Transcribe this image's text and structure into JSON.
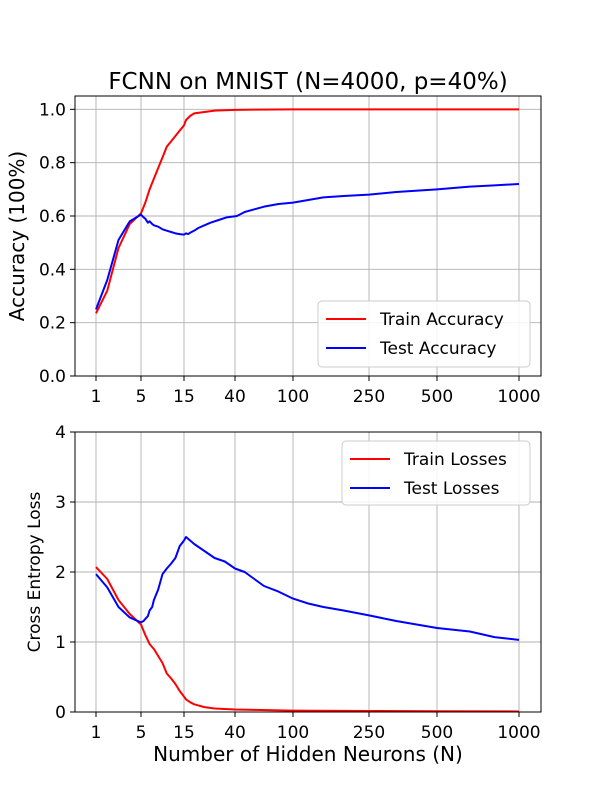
{
  "figure": {
    "title": "FCNN on MNIST (N=4000, p=40%)"
  },
  "colors": {
    "train": "#ff0000",
    "test": "#0000ff",
    "grid": "#b0b0b0",
    "axis": "#000000"
  },
  "chart_data": [
    {
      "type": "line",
      "title": "FCNN on MNIST (N=4000, p=40%)",
      "xlabel": "",
      "ylabel": "Accuracy (100%)",
      "x_ticks": [
        "1",
        "5",
        "15",
        "40",
        "100",
        "250",
        "500",
        "1000"
      ],
      "xlim": [
        1,
        1000
      ],
      "ylim": [
        0,
        1.05
      ],
      "y_ticks": [
        "0.0",
        "0.2",
        "0.4",
        "0.6",
        "0.8",
        "1.0"
      ],
      "grid": true,
      "legend_position": "lower-right",
      "series": [
        {
          "name": "Train Accuracy",
          "color": "#ff0000",
          "points": [
            [
              1,
              0.235
            ],
            [
              2,
              0.32
            ],
            [
              3,
              0.48
            ],
            [
              4,
              0.57
            ],
            [
              5,
              0.61
            ],
            [
              6,
              0.65
            ],
            [
              7,
              0.7
            ],
            [
              8,
              0.74
            ],
            [
              9,
              0.78
            ],
            [
              10,
              0.82
            ],
            [
              11,
              0.86
            ],
            [
              12,
              0.88
            ],
            [
              13,
              0.9
            ],
            [
              14,
              0.92
            ],
            [
              15,
              0.94
            ],
            [
              16,
              0.96
            ],
            [
              18,
              0.975
            ],
            [
              20,
              0.985
            ],
            [
              25,
              0.99
            ],
            [
              30,
              0.995
            ],
            [
              40,
              0.998
            ],
            [
              60,
              0.999
            ],
            [
              100,
              1.0
            ],
            [
              250,
              1.0
            ],
            [
              500,
              1.0
            ],
            [
              1000,
              1.0
            ]
          ]
        },
        {
          "name": "Test Accuracy",
          "color": "#0000ff",
          "points": [
            [
              1,
              0.25
            ],
            [
              2,
              0.36
            ],
            [
              3,
              0.51
            ],
            [
              4,
              0.58
            ],
            [
              5,
              0.605
            ],
            [
              5.6,
              0.595
            ],
            [
              6,
              0.59
            ],
            [
              6.6,
              0.575
            ],
            [
              7,
              0.58
            ],
            [
              7.6,
              0.57
            ],
            [
              8,
              0.565
            ],
            [
              9,
              0.56
            ],
            [
              10,
              0.55
            ],
            [
              11,
              0.545
            ],
            [
              12,
              0.54
            ],
            [
              13,
              0.535
            ],
            [
              14,
              0.532
            ],
            [
              15,
              0.53
            ],
            [
              16,
              0.535
            ],
            [
              17,
              0.532
            ],
            [
              18,
              0.537
            ],
            [
              20,
              0.545
            ],
            [
              22,
              0.555
            ],
            [
              25,
              0.565
            ],
            [
              28,
              0.575
            ],
            [
              32,
              0.585
            ],
            [
              36,
              0.595
            ],
            [
              42,
              0.6
            ],
            [
              50,
              0.615
            ],
            [
              60,
              0.625
            ],
            [
              70,
              0.635
            ],
            [
              85,
              0.645
            ],
            [
              100,
              0.65
            ],
            [
              130,
              0.66
            ],
            [
              160,
              0.67
            ],
            [
              200,
              0.675
            ],
            [
              250,
              0.68
            ],
            [
              350,
              0.69
            ],
            [
              500,
              0.7
            ],
            [
              700,
              0.71
            ],
            [
              850,
              0.715
            ],
            [
              1000,
              0.72
            ]
          ]
        }
      ]
    },
    {
      "type": "line",
      "title": "",
      "xlabel": "Number of Hidden Neurons (N)",
      "ylabel": "Cross Entropy Loss",
      "x_ticks": [
        "1",
        "5",
        "15",
        "40",
        "100",
        "250",
        "500",
        "1000"
      ],
      "xlim": [
        1,
        1000
      ],
      "ylim": [
        0,
        4
      ],
      "y_ticks": [
        "0",
        "1",
        "2",
        "3",
        "4"
      ],
      "grid": true,
      "legend_position": "upper-right",
      "series": [
        {
          "name": "Train Losses",
          "color": "#ff0000",
          "points": [
            [
              1,
              2.07
            ],
            [
              2,
              1.9
            ],
            [
              3,
              1.6
            ],
            [
              4,
              1.4
            ],
            [
              5,
              1.25
            ],
            [
              6,
              1.1
            ],
            [
              7,
              0.97
            ],
            [
              8,
              0.9
            ],
            [
              9,
              0.8
            ],
            [
              10,
              0.7
            ],
            [
              11,
              0.55
            ],
            [
              12,
              0.48
            ],
            [
              13,
              0.4
            ],
            [
              14,
              0.3
            ],
            [
              15,
              0.22
            ],
            [
              16,
              0.18
            ],
            [
              18,
              0.14
            ],
            [
              20,
              0.11
            ],
            [
              25,
              0.07
            ],
            [
              30,
              0.05
            ],
            [
              40,
              0.035
            ],
            [
              60,
              0.03
            ],
            [
              100,
              0.02
            ],
            [
              250,
              0.015
            ],
            [
              500,
              0.01
            ],
            [
              1000,
              0.008
            ]
          ]
        },
        {
          "name": "Test Losses",
          "color": "#0000ff",
          "points": [
            [
              1,
              1.97
            ],
            [
              2,
              1.78
            ],
            [
              3,
              1.5
            ],
            [
              4,
              1.35
            ],
            [
              5,
              1.28
            ],
            [
              5.6,
              1.3
            ],
            [
              6,
              1.33
            ],
            [
              6.6,
              1.37
            ],
            [
              7,
              1.45
            ],
            [
              7.6,
              1.5
            ],
            [
              8,
              1.6
            ],
            [
              9,
              1.75
            ],
            [
              10,
              1.97
            ],
            [
              11,
              2.05
            ],
            [
              12,
              2.12
            ],
            [
              13,
              2.2
            ],
            [
              14,
              2.37
            ],
            [
              15,
              2.45
            ],
            [
              16,
              2.5
            ],
            [
              18,
              2.45
            ],
            [
              20,
              2.4
            ],
            [
              25,
              2.3
            ],
            [
              30,
              2.2
            ],
            [
              35,
              2.15
            ],
            [
              40,
              2.05
            ],
            [
              50,
              2.0
            ],
            [
              60,
              1.9
            ],
            [
              70,
              1.8
            ],
            [
              85,
              1.72
            ],
            [
              100,
              1.62
            ],
            [
              130,
              1.55
            ],
            [
              160,
              1.5
            ],
            [
              200,
              1.45
            ],
            [
              250,
              1.38
            ],
            [
              350,
              1.3
            ],
            [
              500,
              1.2
            ],
            [
              700,
              1.15
            ],
            [
              850,
              1.07
            ],
            [
              1000,
              1.03
            ]
          ]
        }
      ]
    }
  ]
}
